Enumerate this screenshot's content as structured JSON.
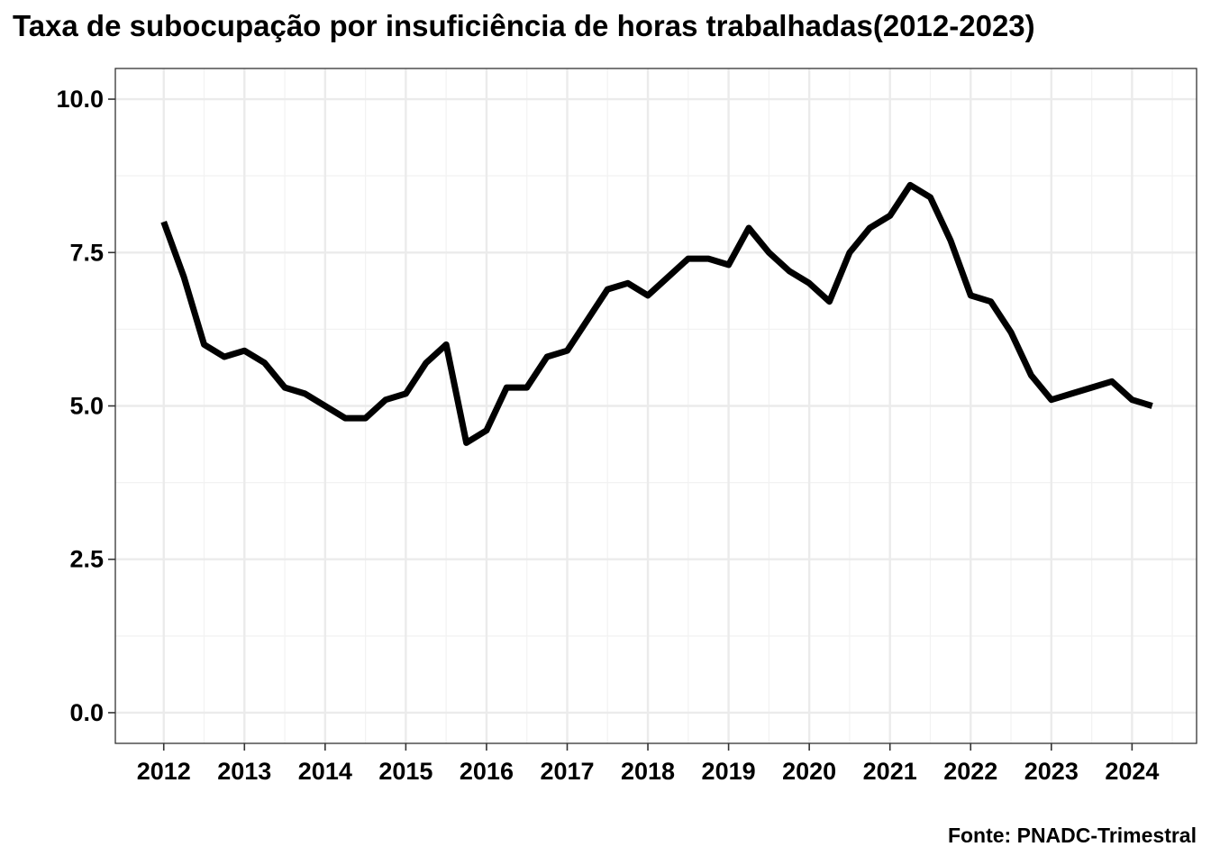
{
  "chart_data": {
    "type": "line",
    "title": "Taxa de subocupação por insuficiência de horas trabalhadas(2012-2023)",
    "caption": "Fonte: PNADC-Trimestral",
    "xlabel": "",
    "ylabel": "",
    "ylim": [
      -0.5,
      10.5
    ],
    "xlim": [
      2011.4,
      2024.8
    ],
    "grid": true,
    "y_ticks": [
      0.0,
      2.5,
      5.0,
      7.5,
      10.0
    ],
    "y_tick_labels": [
      "0.0",
      "2.5",
      "5.0",
      "7.5",
      "10.0"
    ],
    "x_ticks": [
      2012,
      2013,
      2014,
      2015,
      2016,
      2017,
      2018,
      2019,
      2020,
      2021,
      2022,
      2023,
      2024
    ],
    "x_tick_labels": [
      "2012",
      "2013",
      "2014",
      "2015",
      "2016",
      "2017",
      "2018",
      "2019",
      "2020",
      "2021",
      "2022",
      "2023",
      "2024"
    ],
    "series": [
      {
        "color": "#000000",
        "x": [
          2012.0,
          2012.25,
          2012.5,
          2012.75,
          2013.0,
          2013.25,
          2013.5,
          2013.75,
          2014.0,
          2014.25,
          2014.5,
          2014.75,
          2015.0,
          2015.25,
          2015.5,
          2015.75,
          2016.0,
          2016.25,
          2016.5,
          2016.75,
          2017.0,
          2017.25,
          2017.5,
          2017.75,
          2018.0,
          2018.25,
          2018.5,
          2018.75,
          2019.0,
          2019.25,
          2019.5,
          2019.75,
          2020.0,
          2020.25,
          2020.5,
          2020.75,
          2021.0,
          2021.25,
          2021.5,
          2021.75,
          2022.0,
          2022.25,
          2022.5,
          2022.75,
          2023.0,
          2023.25,
          2023.5,
          2023.75,
          2024.0,
          2024.25
        ],
        "values": [
          8.0,
          7.1,
          6.0,
          5.8,
          5.9,
          5.7,
          5.3,
          5.2,
          5.0,
          4.8,
          4.8,
          5.1,
          5.2,
          5.7,
          6.0,
          4.4,
          4.6,
          5.3,
          5.3,
          5.8,
          5.9,
          6.4,
          6.9,
          7.0,
          6.8,
          7.1,
          7.4,
          7.4,
          7.3,
          7.9,
          7.5,
          7.2,
          7.0,
          6.7,
          7.5,
          7.9,
          8.1,
          8.6,
          8.4,
          7.7,
          6.8,
          6.7,
          6.2,
          5.5,
          5.1,
          5.2,
          5.3,
          5.4,
          5.1,
          5.0
        ]
      }
    ]
  }
}
